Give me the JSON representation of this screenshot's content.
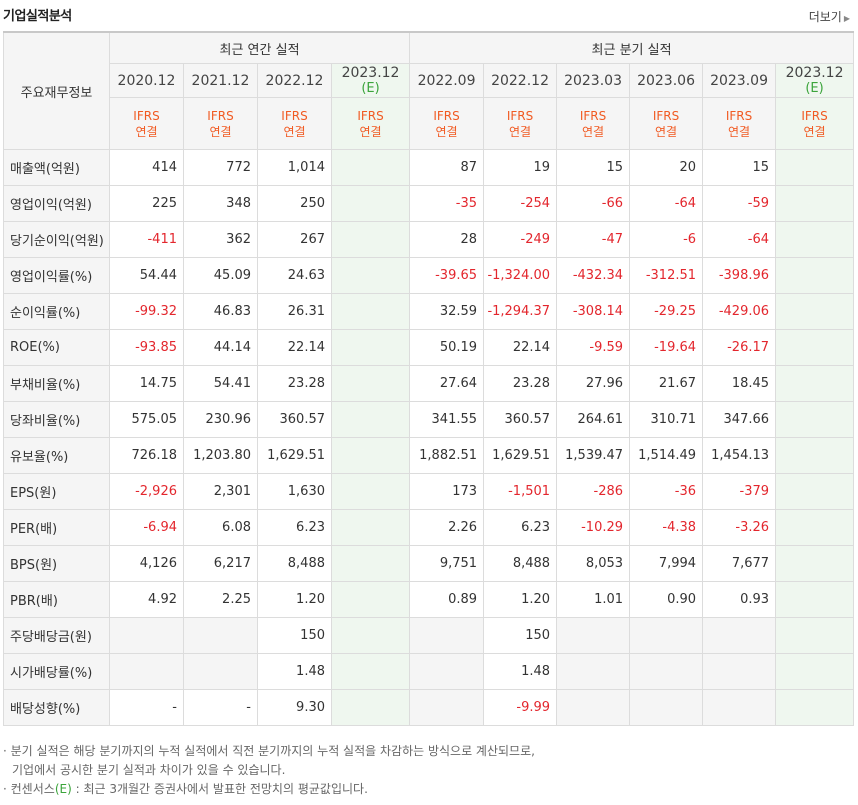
{
  "header": {
    "title": "기업실적분석",
    "more_label": "더보기"
  },
  "table": {
    "row_header_label": "주요재무정보",
    "annual_group": "최근 연간 실적",
    "quarter_group": "최근 분기 실적",
    "periods": [
      "2020.12",
      "2021.12",
      "2022.12",
      "2023.12",
      "2022.09",
      "2022.12",
      "2023.03",
      "2023.06",
      "2023.09",
      "2023.12"
    ],
    "estimate_mark": "(E)",
    "ifrs_top": "IFRS",
    "ifrs_bottom": "연결",
    "rows": [
      {
        "label": "매출액(억원)",
        "values": [
          "414",
          "772",
          "1,014",
          "",
          "87",
          "19",
          "15",
          "20",
          "15",
          ""
        ]
      },
      {
        "label": "영업이익(억원)",
        "values": [
          "225",
          "348",
          "250",
          "",
          "-35",
          "-254",
          "-66",
          "-64",
          "-59",
          ""
        ]
      },
      {
        "label": "당기순이익(억원)",
        "values": [
          "-411",
          "362",
          "267",
          "",
          "28",
          "-249",
          "-47",
          "-6",
          "-64",
          ""
        ]
      },
      {
        "label": "영업이익률(%)",
        "values": [
          "54.44",
          "45.09",
          "24.63",
          "",
          "-39.65",
          "-1,324.00",
          "-432.34",
          "-312.51",
          "-398.96",
          ""
        ]
      },
      {
        "label": "순이익률(%)",
        "values": [
          "-99.32",
          "46.83",
          "26.31",
          "",
          "32.59",
          "-1,294.37",
          "-308.14",
          "-29.25",
          "-429.06",
          ""
        ]
      },
      {
        "label": "ROE(%)",
        "values": [
          "-93.85",
          "44.14",
          "22.14",
          "",
          "50.19",
          "22.14",
          "-9.59",
          "-19.64",
          "-26.17",
          ""
        ]
      },
      {
        "label": "부채비율(%)",
        "values": [
          "14.75",
          "54.41",
          "23.28",
          "",
          "27.64",
          "23.28",
          "27.96",
          "21.67",
          "18.45",
          ""
        ]
      },
      {
        "label": "당좌비율(%)",
        "values": [
          "575.05",
          "230.96",
          "360.57",
          "",
          "341.55",
          "360.57",
          "264.61",
          "310.71",
          "347.66",
          ""
        ]
      },
      {
        "label": "유보율(%)",
        "values": [
          "726.18",
          "1,203.80",
          "1,629.51",
          "",
          "1,882.51",
          "1,629.51",
          "1,539.47",
          "1,514.49",
          "1,454.13",
          ""
        ]
      },
      {
        "label": "EPS(원)",
        "values": [
          "-2,926",
          "2,301",
          "1,630",
          "",
          "173",
          "-1,501",
          "-286",
          "-36",
          "-379",
          ""
        ]
      },
      {
        "label": "PER(배)",
        "values": [
          "-6.94",
          "6.08",
          "6.23",
          "",
          "2.26",
          "6.23",
          "-10.29",
          "-4.38",
          "-3.26",
          ""
        ]
      },
      {
        "label": "BPS(원)",
        "values": [
          "4,126",
          "6,217",
          "8,488",
          "",
          "9,751",
          "8,488",
          "8,053",
          "7,994",
          "7,677",
          ""
        ]
      },
      {
        "label": "PBR(배)",
        "values": [
          "4.92",
          "2.25",
          "1.20",
          "",
          "0.89",
          "1.20",
          "1.01",
          "0.90",
          "0.93",
          ""
        ]
      },
      {
        "label": "주당배당금(원)",
        "values": [
          "",
          "",
          "150",
          "",
          "",
          "150",
          "",
          "",
          "",
          ""
        ]
      },
      {
        "label": "시가배당률(%)",
        "values": [
          "",
          "",
          "1.48",
          "",
          "",
          "1.48",
          "",
          "",
          "",
          ""
        ]
      },
      {
        "label": "배당성향(%)",
        "values": [
          "-",
          "-",
          "9.30",
          "",
          "",
          "-9.99",
          "",
          "",
          "",
          ""
        ]
      }
    ]
  },
  "notes": {
    "line1": "분기 실적은 해당 분기까지의 누적 실적에서 직전 분기까지의 누적 실적을 차감하는 방식으로 계산되므로,",
    "line2": "기업에서 공시한 분기 실적과 차이가 있을 수 있습니다.",
    "line3_prefix": "컨센서스",
    "line3_mark": "(E)",
    "line3_suffix": " : 최근 3개월간 증권사에서 발표한 전망치의 평균값입니다."
  },
  "colors": {
    "negative": "#e3262d",
    "ifrs": "#f15a22",
    "estimate": "#3ba43b",
    "header_bg": "#f5f5f5",
    "estimate_bg": "#eff7ef"
  }
}
